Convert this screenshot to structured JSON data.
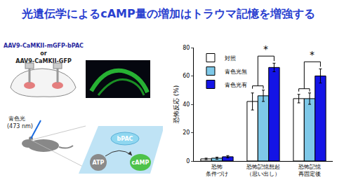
{
  "title": "光遺伝学によるcAMP量の増加はトラウマ記憶を増強する",
  "diagram": {
    "virus_1": "AAV9-CaMKII-mGFP-bPAC",
    "or": "or",
    "virus_2": "AAV9-CaMKII-GFP",
    "light": [
      "青色光",
      "(473 nm)"
    ],
    "enzyme": "bPAC",
    "substrate": "ATP",
    "product": "cAMP"
  },
  "chart_data": {
    "type": "bar",
    "y_label": "恐怖反応 (%)",
    "categories": [
      [
        "恐怖",
        "条件づけ"
      ],
      [
        "恐怖記憶想起",
        "（思い出し）"
      ],
      [
        "恐怖記憶",
        "再固定後"
      ]
    ],
    "series": [
      {
        "name": "対照",
        "color": "#ffffff",
        "values": [
          1.5,
          42,
          44
        ],
        "errors": [
          0.5,
          6,
          3
        ]
      },
      {
        "name": "青色光無",
        "color": "#7ec8e8",
        "values": [
          2,
          46,
          44
        ],
        "errors": [
          0.7,
          4,
          4
        ]
      },
      {
        "name": "青色光有",
        "color": "#1414e6",
        "values": [
          3,
          66,
          60
        ],
        "errors": [
          0.8,
          3,
          5
        ]
      }
    ],
    "ylim": [
      0,
      80
    ],
    "yticks": [
      0,
      20,
      40,
      60,
      80
    ],
    "legend": "top-left",
    "annotations": [
      {
        "text": "*",
        "category": 1
      },
      {
        "text": "*",
        "category": 2
      }
    ]
  }
}
